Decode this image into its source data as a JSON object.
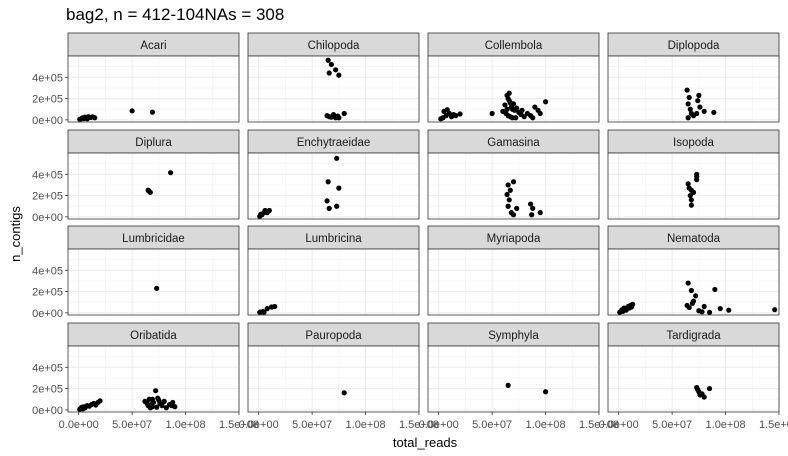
{
  "title": "bag2, n = 412-104NAs = 308",
  "chart_data": {
    "type": "scatter",
    "facet": "wrap",
    "xlabel": "total_reads",
    "ylabel": "n_contigs",
    "xlim": [
      -10000000.0,
      150000000.0
    ],
    "ylim": [
      -20000.0,
      600000.0
    ],
    "x_ticks": [
      0,
      50000000,
      100000000,
      150000000
    ],
    "x_tick_labels": [
      "0.0e+00",
      "5.0e+07",
      "1.0e+08",
      "1.5e+08"
    ],
    "y_ticks": [
      0,
      200000,
      400000
    ],
    "y_tick_labels": [
      "0e+00",
      "2e+05",
      "4e+05"
    ],
    "grid": true,
    "panels": [
      {
        "name": "Acari",
        "points": [
          [
            1000000.0,
            5000
          ],
          [
            2000000.0,
            8000
          ],
          [
            3000000.0,
            15000
          ],
          [
            4000000.0,
            20000
          ],
          [
            5000000.0,
            12000
          ],
          [
            6000000.0,
            25000
          ],
          [
            7000000.0,
            18000
          ],
          [
            8000000.0,
            10000
          ],
          [
            9000000.0,
            30000
          ],
          [
            11000000.0,
            22000
          ],
          [
            13000000.0,
            28000
          ],
          [
            15000000.0,
            20000
          ],
          [
            50000000.0,
            85000
          ],
          [
            69000000.0,
            72000
          ]
        ]
      },
      {
        "name": "Chilopoda",
        "points": [
          [
            65000000.0,
            560000
          ],
          [
            68000000.0,
            520000
          ],
          [
            72000000.0,
            470000
          ],
          [
            66000000.0,
            440000
          ],
          [
            75000000.0,
            420000
          ],
          [
            64000000.0,
            40000
          ],
          [
            66000000.0,
            30000
          ],
          [
            68000000.0,
            25000
          ],
          [
            70000000.0,
            50000
          ],
          [
            72000000.0,
            20000
          ],
          [
            74000000.0,
            35000
          ],
          [
            80000000.0,
            60000
          ],
          [
            75000000.0,
            20000
          ]
        ]
      },
      {
        "name": "Collembola",
        "points": [
          [
            5000000.0,
            80000
          ],
          [
            7000000.0,
            40000
          ],
          [
            8000000.0,
            95000
          ],
          [
            10000000.0,
            60000
          ],
          [
            12000000.0,
            30000
          ],
          [
            14000000.0,
            50000
          ],
          [
            2000000.0,
            10000
          ],
          [
            4000000.0,
            20000
          ],
          [
            16000000.0,
            40000
          ],
          [
            20000000.0,
            55000
          ],
          [
            50000000.0,
            60000
          ],
          [
            60000000.0,
            80000
          ],
          [
            62000000.0,
            140000
          ],
          [
            64000000.0,
            230000
          ],
          [
            65000000.0,
            200000
          ],
          [
            66000000.0,
            180000
          ],
          [
            67000000.0,
            160000
          ],
          [
            68000000.0,
            120000
          ],
          [
            69000000.0,
            100000
          ],
          [
            70000000.0,
            150000
          ],
          [
            63000000.0,
            60000
          ],
          [
            65000000.0,
            40000
          ],
          [
            67000000.0,
            30000
          ],
          [
            69000000.0,
            20000
          ],
          [
            71000000.0,
            90000
          ],
          [
            73000000.0,
            110000
          ],
          [
            75000000.0,
            70000
          ],
          [
            77000000.0,
            50000
          ],
          [
            80000000.0,
            30000
          ],
          [
            83000000.0,
            60000
          ],
          [
            86000000.0,
            40000
          ],
          [
            90000000.0,
            120000
          ],
          [
            93000000.0,
            90000
          ],
          [
            95000000.0,
            60000
          ],
          [
            100000000.0,
            170000
          ],
          [
            66000000.0,
            250000
          ],
          [
            64000000.0,
            100000
          ],
          [
            72000000.0,
            20000
          ],
          [
            78000000.0,
            90000
          ],
          [
            88000000.0,
            20000
          ]
        ]
      },
      {
        "name": "Diplopoda",
        "points": [
          [
            64000000.0,
            280000
          ],
          [
            66000000.0,
            210000
          ],
          [
            65000000.0,
            150000
          ],
          [
            67000000.0,
            100000
          ],
          [
            68000000.0,
            60000
          ],
          [
            70000000.0,
            40000
          ],
          [
            65000000.0,
            20000
          ],
          [
            75000000.0,
            230000
          ],
          [
            74000000.0,
            180000
          ],
          [
            76000000.0,
            120000
          ],
          [
            80000000.0,
            80000
          ],
          [
            73000000.0,
            60000
          ],
          [
            89000000.0,
            70000
          ]
        ]
      },
      {
        "name": "Diplura",
        "points": [
          [
            65000000.0,
            250000
          ],
          [
            66000000.0,
            240000
          ],
          [
            67000000.0,
            230000
          ],
          [
            86000000.0,
            415000
          ]
        ]
      },
      {
        "name": "Enchytraeidae",
        "points": [
          [
            1000000.0,
            5000
          ],
          [
            3000000.0,
            20000
          ],
          [
            5000000.0,
            40000
          ],
          [
            6000000.0,
            60000
          ],
          [
            8000000.0,
            40000
          ],
          [
            10000000.0,
            60000
          ],
          [
            2000000.0,
            25000
          ],
          [
            65000000.0,
            330000
          ],
          [
            64000000.0,
            150000
          ],
          [
            66000000.0,
            80000
          ],
          [
            73000000.0,
            550000
          ],
          [
            75000000.0,
            270000
          ],
          [
            73000000.0,
            100000
          ]
        ]
      },
      {
        "name": "Gamasina",
        "points": [
          [
            65000000.0,
            300000
          ],
          [
            67000000.0,
            250000
          ],
          [
            64000000.0,
            210000
          ],
          [
            66000000.0,
            160000
          ],
          [
            65000000.0,
            100000
          ],
          [
            68000000.0,
            40000
          ],
          [
            70000000.0,
            20000
          ],
          [
            70000000.0,
            330000
          ],
          [
            73000000.0,
            80000
          ],
          [
            86000000.0,
            120000
          ],
          [
            88000000.0,
            80000
          ],
          [
            95000000.0,
            40000
          ],
          [
            87000000.0,
            20000
          ]
        ]
      },
      {
        "name": "Isopoda",
        "points": [
          [
            65000000.0,
            310000
          ],
          [
            66000000.0,
            270000
          ],
          [
            67000000.0,
            200000
          ],
          [
            68000000.0,
            160000
          ],
          [
            68000000.0,
            110000
          ],
          [
            70000000.0,
            230000
          ],
          [
            73000000.0,
            350000
          ],
          [
            73000000.0,
            400000
          ],
          [
            73000000.0,
            380000
          ],
          [
            68000000.0,
            250000
          ]
        ]
      },
      {
        "name": "Lumbricidae",
        "points": [
          [
            73000000.0,
            230000
          ]
        ]
      },
      {
        "name": "Lumbricina",
        "points": [
          [
            1000000.0,
            5000
          ],
          [
            2000000.0,
            8000
          ],
          [
            4000000.0,
            12000
          ],
          [
            5000000.0,
            6000
          ],
          [
            8000000.0,
            40000
          ],
          [
            12000000.0,
            55000
          ],
          [
            15000000.0,
            60000
          ]
        ]
      },
      {
        "name": "Myriapoda",
        "points": []
      },
      {
        "name": "Nematoda",
        "points": [
          [
            1000000.0,
            5000
          ],
          [
            2000000.0,
            12000
          ],
          [
            3000000.0,
            20000
          ],
          [
            4000000.0,
            15000
          ],
          [
            5000000.0,
            30000
          ],
          [
            6000000.0,
            40000
          ],
          [
            7000000.0,
            25000
          ],
          [
            8000000.0,
            50000
          ],
          [
            9000000.0,
            60000
          ],
          [
            10000000.0,
            45000
          ],
          [
            11000000.0,
            70000
          ],
          [
            12000000.0,
            55000
          ],
          [
            13000000.0,
            80000
          ],
          [
            3000000.0,
            30000
          ],
          [
            5000000.0,
            45000
          ],
          [
            65000000.0,
            280000
          ],
          [
            68000000.0,
            210000
          ],
          [
            64000000.0,
            70000
          ],
          [
            66000000.0,
            50000
          ],
          [
            69000000.0,
            90000
          ],
          [
            70000000.0,
            110000
          ],
          [
            72000000.0,
            160000
          ],
          [
            75000000.0,
            20000
          ],
          [
            78000000.0,
            10000
          ],
          [
            80000000.0,
            60000
          ],
          [
            85000000.0,
            5000
          ],
          [
            90000000.0,
            220000
          ],
          [
            95000000.0,
            40000
          ],
          [
            103000000.0,
            25000
          ],
          [
            146000000.0,
            30000
          ]
        ]
      },
      {
        "name": "Oribatida",
        "points": [
          [
            1000000.0,
            5000
          ],
          [
            2000000.0,
            15000
          ],
          [
            3000000.0,
            25000
          ],
          [
            4000000.0,
            10000
          ],
          [
            5000000.0,
            30000
          ],
          [
            6000000.0,
            20000
          ],
          [
            8000000.0,
            40000
          ],
          [
            10000000.0,
            35000
          ],
          [
            12000000.0,
            50000
          ],
          [
            14000000.0,
            60000
          ],
          [
            16000000.0,
            45000
          ],
          [
            18000000.0,
            70000
          ],
          [
            20000000.0,
            85000
          ],
          [
            62000000.0,
            80000
          ],
          [
            64000000.0,
            60000
          ],
          [
            65000000.0,
            40000
          ],
          [
            66000000.0,
            100000
          ],
          [
            67000000.0,
            20000
          ],
          [
            68000000.0,
            50000
          ],
          [
            69000000.0,
            30000
          ],
          [
            70000000.0,
            70000
          ],
          [
            72000000.0,
            180000
          ],
          [
            74000000.0,
            110000
          ],
          [
            75000000.0,
            90000
          ],
          [
            76000000.0,
            60000
          ],
          [
            78000000.0,
            40000
          ],
          [
            80000000.0,
            80000
          ],
          [
            82000000.0,
            20000
          ],
          [
            85000000.0,
            50000
          ],
          [
            88000000.0,
            70000
          ],
          [
            90000000.0,
            30000
          ],
          [
            73000000.0,
            25000
          ],
          [
            69000000.0,
            100000
          ],
          [
            87000000.0,
            40000
          ]
        ]
      },
      {
        "name": "Pauropoda",
        "points": [
          [
            80000000.0,
            160000
          ]
        ]
      },
      {
        "name": "Symphyla",
        "points": [
          [
            65000000.0,
            230000
          ],
          [
            100000000.0,
            170000
          ]
        ]
      },
      {
        "name": "Tardigrada",
        "points": [
          [
            73000000.0,
            210000
          ],
          [
            74000000.0,
            190000
          ],
          [
            75000000.0,
            170000
          ],
          [
            76000000.0,
            140000
          ],
          [
            80000000.0,
            120000
          ],
          [
            85000000.0,
            200000
          ],
          [
            78000000.0,
            150000
          ]
        ]
      }
    ]
  }
}
